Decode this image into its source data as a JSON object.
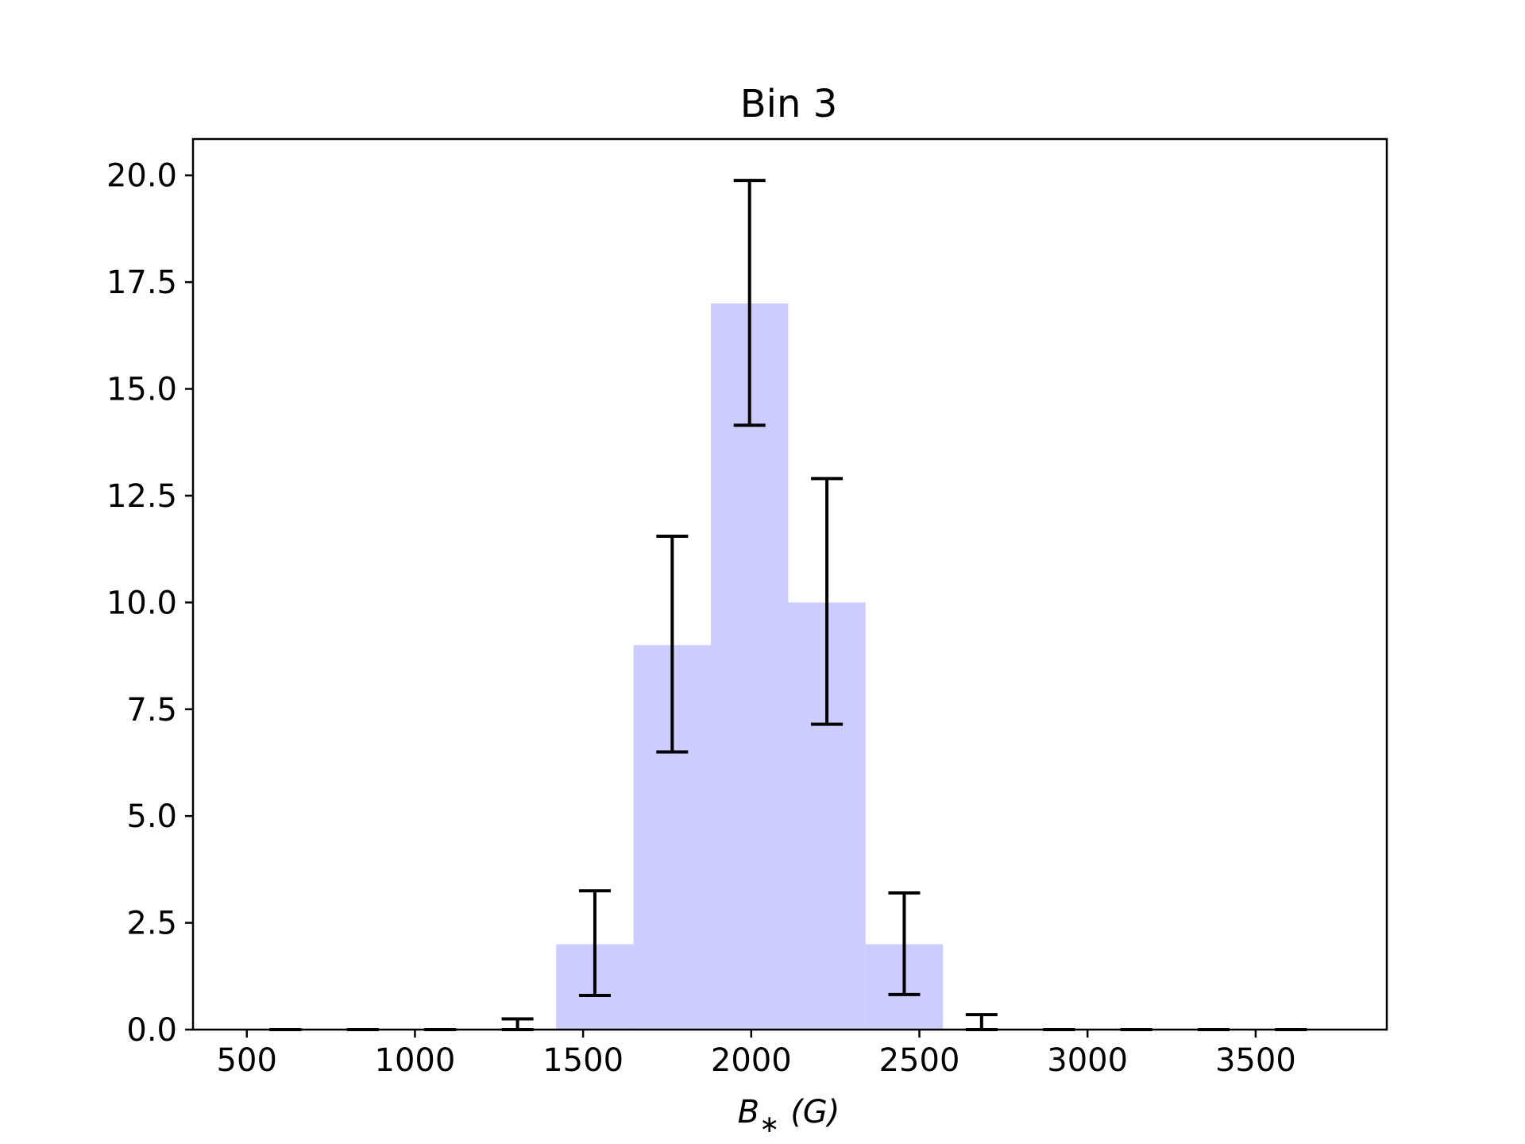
{
  "chart_data": {
    "type": "bar",
    "title": "Bin 3",
    "xlabel": "B∗ (G)",
    "xlabel_parts": {
      "symbol": "B",
      "subscript": "∗",
      "unit": "(G)"
    },
    "ylabel": "",
    "xlim": [
      340,
      3890
    ],
    "ylim": [
      0,
      20.85
    ],
    "xticks": [
      500,
      1000,
      1500,
      2000,
      2500,
      3000,
      3500
    ],
    "yticks": [
      0.0,
      2.5,
      5.0,
      7.5,
      10.0,
      12.5,
      15.0,
      17.5,
      20.0
    ],
    "xtick_labels": [
      "500",
      "1000",
      "1500",
      "2000",
      "2500",
      "3000",
      "3500"
    ],
    "ytick_labels": [
      "0.0",
      "2.5",
      "5.0",
      "7.5",
      "10.0",
      "12.5",
      "15.0",
      "17.5",
      "20.0"
    ],
    "bin_edges": [
      500,
      730,
      960,
      1190,
      1420,
      1650,
      1880,
      2110,
      2340,
      2570,
      2800,
      3030,
      3260,
      3490,
      3720
    ],
    "bin_centers": [
      615,
      845,
      1075,
      1305,
      1535,
      1765,
      1995,
      2225,
      2455,
      2685,
      2915,
      3145,
      3375,
      3605
    ],
    "values": [
      0,
      0,
      0,
      0,
      2,
      9,
      17,
      10,
      2,
      0,
      0,
      0,
      0,
      0
    ],
    "error_lower": [
      0,
      0,
      0,
      0,
      0.8,
      6.5,
      14.15,
      7.15,
      0.82,
      0,
      0,
      0,
      0,
      0
    ],
    "error_upper": [
      0,
      0,
      0,
      0.25,
      3.25,
      11.55,
      19.88,
      12.9,
      3.2,
      0.35,
      0,
      0,
      0,
      0
    ],
    "grid": false,
    "bar_color": "#ccccff",
    "errorbar_color": "#000000"
  }
}
